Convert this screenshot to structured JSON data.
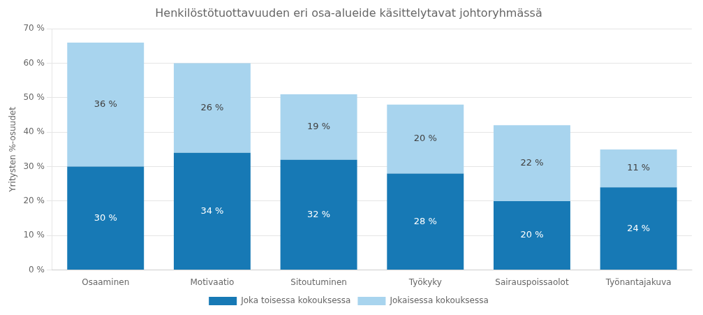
{
  "chart_data": {
    "type": "bar",
    "title": "Henkilöstötuottavuuden eri osa-alueide käsittelytavat johtoryhmässä",
    "categories": [
      "Osaaminen",
      "Motivaatio",
      "Sitoutuminen",
      "Työkyky",
      "Sairauspoissaolot",
      "Työnantajakuva"
    ],
    "series": [
      {
        "name": "Joka toisessa kokouksessa",
        "color": "#1779B5",
        "values": [
          30,
          34,
          32,
          28,
          20,
          24
        ],
        "value_labels": [
          "30 %",
          "34 %",
          "32 %",
          "28 %",
          "20 %",
          "24 %"
        ]
      },
      {
        "name": "Jokaisessa kokouksessa",
        "color": "#A8D4EE",
        "values": [
          36,
          26,
          19,
          20,
          22,
          11
        ],
        "value_labels": [
          "36 %",
          "26 %",
          "19 %",
          "20 %",
          "22 %",
          "11 %"
        ]
      }
    ],
    "ylabel": "Yritysten %-osuudet",
    "ylim": [
      0,
      70
    ],
    "yticks": [
      {
        "value": 0,
        "label": "0 %"
      },
      {
        "value": 10,
        "label": "10 %"
      },
      {
        "value": 20,
        "label": "20 %"
      },
      {
        "value": 30,
        "label": "30 %"
      },
      {
        "value": 40,
        "label": "40 %"
      },
      {
        "value": 50,
        "label": "50 %"
      },
      {
        "value": 60,
        "label": "60 %"
      },
      {
        "value": 70,
        "label": "70 %"
      }
    ],
    "stacked": true,
    "grid": true,
    "legend": "bottom",
    "data_labels": true
  }
}
